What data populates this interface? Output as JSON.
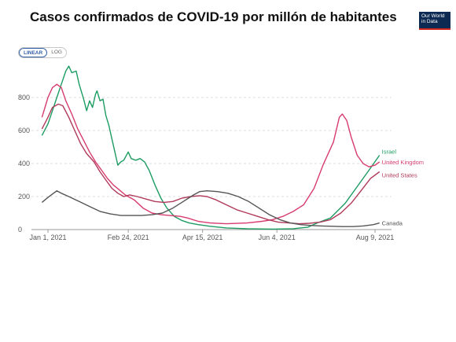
{
  "title": "Casos confirmados de COVID-19 por millón de habitantes",
  "logo": {
    "line1": "Our World",
    "line2": "in Data"
  },
  "scale_toggle": {
    "linear_label": "LINEAR",
    "log_label": "LOG",
    "selected": "LINEAR"
  },
  "chart_data": {
    "type": "line",
    "title": "Casos confirmados de COVID-19 por millón de habitantes",
    "xlabel": "",
    "ylabel": "",
    "x_type": "date",
    "xlim": [
      "2021-01-01",
      "2021-08-15"
    ],
    "ylim": [
      0,
      1000
    ],
    "x_ticks": [
      {
        "date": "2021-01-01",
        "label": "Jan 1, 2021"
      },
      {
        "date": "2021-02-24",
        "label": "Feb 24, 2021"
      },
      {
        "date": "2021-04-15",
        "label": "Apr 15, 2021"
      },
      {
        "date": "2021-06-04",
        "label": "Jun 4, 2021"
      },
      {
        "date": "2021-08-09",
        "label": "Aug 9, 2021"
      }
    ],
    "y_ticks": [
      0,
      200,
      400,
      600,
      800
    ],
    "grid": "horizontal dashed",
    "legend": "inline labels at line ends (right)",
    "series": [
      {
        "name": "Israel",
        "color": "#1c9c62",
        "points": [
          [
            "2020-12-28",
            570
          ],
          [
            "2021-01-01",
            640
          ],
          [
            "2021-01-04",
            720
          ],
          [
            "2021-01-07",
            800
          ],
          [
            "2021-01-10",
            880
          ],
          [
            "2021-01-13",
            960
          ],
          [
            "2021-01-15",
            990
          ],
          [
            "2021-01-17",
            950
          ],
          [
            "2021-01-20",
            960
          ],
          [
            "2021-01-22",
            880
          ],
          [
            "2021-01-25",
            790
          ],
          [
            "2021-01-27",
            720
          ],
          [
            "2021-01-29",
            780
          ],
          [
            "2021-01-31",
            740
          ],
          [
            "2021-02-02",
            820
          ],
          [
            "2021-02-03",
            840
          ],
          [
            "2021-02-05",
            780
          ],
          [
            "2021-02-07",
            790
          ],
          [
            "2021-02-09",
            690
          ],
          [
            "2021-02-11",
            630
          ],
          [
            "2021-02-13",
            550
          ],
          [
            "2021-02-15",
            470
          ],
          [
            "2021-02-17",
            390
          ],
          [
            "2021-02-19",
            410
          ],
          [
            "2021-02-21",
            420
          ],
          [
            "2021-02-24",
            470
          ],
          [
            "2021-02-26",
            430
          ],
          [
            "2021-03-01",
            420
          ],
          [
            "2021-03-04",
            430
          ],
          [
            "2021-03-07",
            410
          ],
          [
            "2021-03-10",
            360
          ],
          [
            "2021-03-14",
            270
          ],
          [
            "2021-03-18",
            190
          ],
          [
            "2021-03-22",
            130
          ],
          [
            "2021-03-27",
            80
          ],
          [
            "2021-04-01",
            55
          ],
          [
            "2021-04-06",
            40
          ],
          [
            "2021-04-12",
            30
          ],
          [
            "2021-04-20",
            20
          ],
          [
            "2021-05-01",
            10
          ],
          [
            "2021-05-15",
            5
          ],
          [
            "2021-06-01",
            3
          ],
          [
            "2021-06-15",
            5
          ],
          [
            "2021-06-25",
            15
          ],
          [
            "2021-07-01",
            40
          ],
          [
            "2021-07-10",
            70
          ],
          [
            "2021-07-20",
            160
          ],
          [
            "2021-07-28",
            260
          ],
          [
            "2021-08-05",
            360
          ],
          [
            "2021-08-12",
            450
          ]
        ]
      },
      {
        "name": "United Kingdom",
        "color": "#d73c6e",
        "points": [
          [
            "2020-12-28",
            680
          ],
          [
            "2021-01-01",
            800
          ],
          [
            "2021-01-04",
            860
          ],
          [
            "2021-01-07",
            880
          ],
          [
            "2021-01-10",
            860
          ],
          [
            "2021-01-13",
            780
          ],
          [
            "2021-01-17",
            700
          ],
          [
            "2021-01-21",
            610
          ],
          [
            "2021-01-25",
            540
          ],
          [
            "2021-01-29",
            470
          ],
          [
            "2021-02-02",
            410
          ],
          [
            "2021-02-06",
            360
          ],
          [
            "2021-02-10",
            310
          ],
          [
            "2021-02-14",
            270
          ],
          [
            "2021-02-18",
            240
          ],
          [
            "2021-02-22",
            210
          ],
          [
            "2021-02-28",
            180
          ],
          [
            "2021-03-06",
            130
          ],
          [
            "2021-03-12",
            100
          ],
          [
            "2021-03-18",
            90
          ],
          [
            "2021-03-24",
            85
          ],
          [
            "2021-03-31",
            80
          ],
          [
            "2021-04-05",
            70
          ],
          [
            "2021-04-12",
            50
          ],
          [
            "2021-04-20",
            40
          ],
          [
            "2021-05-01",
            35
          ],
          [
            "2021-05-15",
            40
          ],
          [
            "2021-05-25",
            50
          ],
          [
            "2021-06-01",
            60
          ],
          [
            "2021-06-08",
            80
          ],
          [
            "2021-06-15",
            110
          ],
          [
            "2021-06-22",
            150
          ],
          [
            "2021-06-29",
            250
          ],
          [
            "2021-07-05",
            390
          ],
          [
            "2021-07-12",
            530
          ],
          [
            "2021-07-16",
            680
          ],
          [
            "2021-07-18",
            700
          ],
          [
            "2021-07-21",
            660
          ],
          [
            "2021-07-24",
            560
          ],
          [
            "2021-07-28",
            450
          ],
          [
            "2021-08-01",
            400
          ],
          [
            "2021-08-05",
            380
          ],
          [
            "2021-08-09",
            390
          ],
          [
            "2021-08-12",
            410
          ]
        ]
      },
      {
        "name": "United States",
        "color": "#b03a5b",
        "points": [
          [
            "2020-12-28",
            610
          ],
          [
            "2021-01-01",
            680
          ],
          [
            "2021-01-04",
            740
          ],
          [
            "2021-01-08",
            760
          ],
          [
            "2021-01-11",
            750
          ],
          [
            "2021-01-15",
            680
          ],
          [
            "2021-01-19",
            600
          ],
          [
            "2021-01-23",
            520
          ],
          [
            "2021-01-27",
            460
          ],
          [
            "2021-02-01",
            410
          ],
          [
            "2021-02-05",
            350
          ],
          [
            "2021-02-09",
            300
          ],
          [
            "2021-02-13",
            250
          ],
          [
            "2021-02-17",
            220
          ],
          [
            "2021-02-21",
            200
          ],
          [
            "2021-02-25",
            210
          ],
          [
            "2021-03-02",
            200
          ],
          [
            "2021-03-08",
            185
          ],
          [
            "2021-03-14",
            170
          ],
          [
            "2021-03-20",
            165
          ],
          [
            "2021-03-26",
            170
          ],
          [
            "2021-04-01",
            190
          ],
          [
            "2021-04-07",
            200
          ],
          [
            "2021-04-13",
            205
          ],
          [
            "2021-04-18",
            200
          ],
          [
            "2021-04-24",
            180
          ],
          [
            "2021-05-01",
            150
          ],
          [
            "2021-05-08",
            120
          ],
          [
            "2021-05-15",
            100
          ],
          [
            "2021-05-22",
            80
          ],
          [
            "2021-05-29",
            60
          ],
          [
            "2021-06-05",
            45
          ],
          [
            "2021-06-12",
            40
          ],
          [
            "2021-06-19",
            35
          ],
          [
            "2021-06-26",
            38
          ],
          [
            "2021-07-03",
            45
          ],
          [
            "2021-07-10",
            60
          ],
          [
            "2021-07-17",
            100
          ],
          [
            "2021-07-24",
            160
          ],
          [
            "2021-07-31",
            240
          ],
          [
            "2021-08-06",
            310
          ],
          [
            "2021-08-12",
            350
          ]
        ]
      },
      {
        "name": "Canada",
        "color": "#555555",
        "points": [
          [
            "2020-12-28",
            165
          ],
          [
            "2021-01-01",
            195
          ],
          [
            "2021-01-04",
            215
          ],
          [
            "2021-01-07",
            235
          ],
          [
            "2021-01-10",
            220
          ],
          [
            "2021-01-15",
            200
          ],
          [
            "2021-01-22",
            170
          ],
          [
            "2021-01-29",
            140
          ],
          [
            "2021-02-05",
            110
          ],
          [
            "2021-02-12",
            95
          ],
          [
            "2021-02-19",
            85
          ],
          [
            "2021-02-26",
            85
          ],
          [
            "2021-03-05",
            85
          ],
          [
            "2021-03-12",
            90
          ],
          [
            "2021-03-19",
            100
          ],
          [
            "2021-03-26",
            130
          ],
          [
            "2021-04-02",
            170
          ],
          [
            "2021-04-09",
            210
          ],
          [
            "2021-04-13",
            230
          ],
          [
            "2021-04-18",
            235
          ],
          [
            "2021-04-25",
            230
          ],
          [
            "2021-05-02",
            220
          ],
          [
            "2021-05-09",
            200
          ],
          [
            "2021-05-16",
            170
          ],
          [
            "2021-05-23",
            130
          ],
          [
            "2021-05-30",
            90
          ],
          [
            "2021-06-06",
            60
          ],
          [
            "2021-06-13",
            40
          ],
          [
            "2021-06-20",
            30
          ],
          [
            "2021-06-27",
            25
          ],
          [
            "2021-07-04",
            22
          ],
          [
            "2021-07-11",
            20
          ],
          [
            "2021-07-18",
            18
          ],
          [
            "2021-07-25",
            18
          ],
          [
            "2021-08-01",
            22
          ],
          [
            "2021-08-08",
            30
          ],
          [
            "2021-08-12",
            40
          ]
        ]
      }
    ],
    "series_label_offsets": {
      "Israel": -5,
      "United Kingdom": 0,
      "United States": 4,
      "Canada": 0
    }
  }
}
